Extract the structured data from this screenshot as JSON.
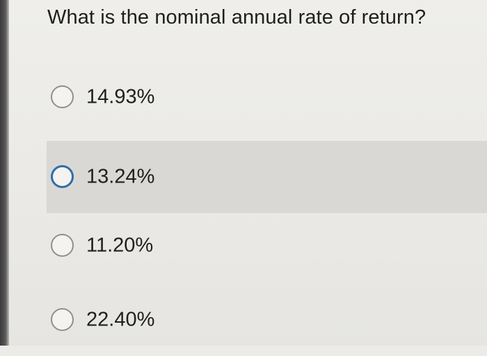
{
  "question": {
    "text": "What is the nominal annual rate of return?"
  },
  "options": [
    {
      "label": "14.93%",
      "selected": false
    },
    {
      "label": "13.24%",
      "selected": true
    },
    {
      "label": "11.20%",
      "selected": false
    },
    {
      "label": "22.40%",
      "selected": false
    }
  ],
  "colors": {
    "focus_ring": "#2f6ea8",
    "highlight": "#d9d8d5",
    "text": "#1f1f1f"
  }
}
